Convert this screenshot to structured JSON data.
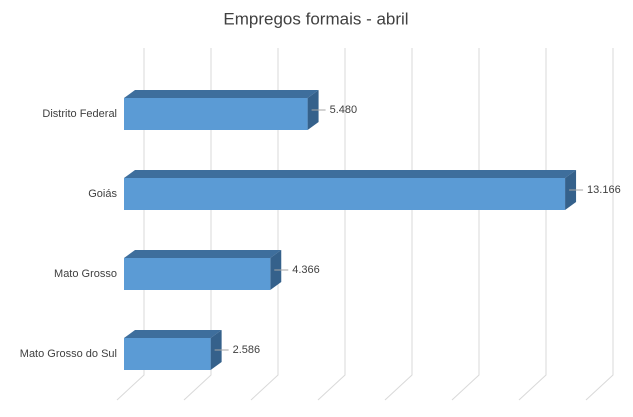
{
  "chart_data": {
    "type": "bar3d_horizontal",
    "title": "Empregos formais - abril",
    "categories": [
      "Distrito Federal",
      "Goiás",
      "Mato Grosso",
      "Mato Grosso do Sul"
    ],
    "values": [
      5480,
      13166,
      4366,
      2586
    ],
    "value_labels": [
      "5.480",
      "13.166",
      "4.366",
      "2.586"
    ],
    "color": "#5b9bd5",
    "xlim": [
      0,
      14000
    ],
    "xticks": [
      0,
      2000,
      4000,
      6000,
      8000,
      10000,
      12000,
      14000
    ],
    "grid": true
  }
}
